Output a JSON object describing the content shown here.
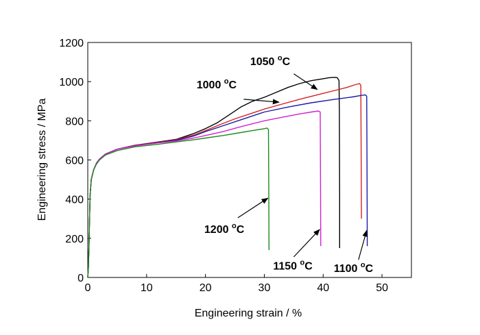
{
  "chart_data": {
    "type": "line",
    "xlabel": "Engineering strain / %",
    "ylabel": "Engineering stress / MPa",
    "xlim": [
      0,
      55
    ],
    "ylim": [
      0,
      1200
    ],
    "xticks": [
      "0",
      "10",
      "20",
      "30",
      "40",
      "50"
    ],
    "yticks": [
      "0",
      "200",
      "400",
      "600",
      "800",
      "1000",
      "1200"
    ],
    "grid": false,
    "legend": "none",
    "series": [
      {
        "label": "1000 °C",
        "color": "#000000",
        "points": [
          [
            0,
            0
          ],
          [
            0.1,
            50
          ],
          [
            0.2,
            150
          ],
          [
            0.3,
            300
          ],
          [
            0.4,
            420
          ],
          [
            0.6,
            500
          ],
          [
            1,
            550
          ],
          [
            1.5,
            585
          ],
          [
            2,
            605
          ],
          [
            3,
            630
          ],
          [
            5,
            655
          ],
          [
            8,
            675
          ],
          [
            12,
            692
          ],
          [
            15,
            705
          ],
          [
            18,
            735
          ],
          [
            20,
            760
          ],
          [
            22,
            790
          ],
          [
            24,
            830
          ],
          [
            26,
            870
          ],
          [
            28,
            900
          ],
          [
            30,
            920
          ],
          [
            32,
            945
          ],
          [
            34,
            970
          ],
          [
            36,
            990
          ],
          [
            38,
            1005
          ],
          [
            40,
            1015
          ],
          [
            41,
            1020
          ],
          [
            42,
            1022
          ],
          [
            42.4,
            1020
          ],
          [
            42.7,
            1005
          ],
          [
            42.75,
            850
          ],
          [
            42.8,
            400
          ],
          [
            42.8,
            150
          ]
        ]
      },
      {
        "label": "1050 °C",
        "color": "#d62020",
        "points": [
          [
            0,
            0
          ],
          [
            0.1,
            50
          ],
          [
            0.2,
            150
          ],
          [
            0.3,
            300
          ],
          [
            0.4,
            420
          ],
          [
            0.6,
            500
          ],
          [
            1,
            550
          ],
          [
            1.5,
            585
          ],
          [
            2,
            605
          ],
          [
            3,
            630
          ],
          [
            5,
            655
          ],
          [
            8,
            675
          ],
          [
            12,
            690
          ],
          [
            15,
            703
          ],
          [
            18,
            727
          ],
          [
            20,
            750
          ],
          [
            22,
            775
          ],
          [
            25,
            810
          ],
          [
            28,
            840
          ],
          [
            30,
            860
          ],
          [
            33,
            885
          ],
          [
            36,
            910
          ],
          [
            40,
            940
          ],
          [
            42,
            955
          ],
          [
            44,
            970
          ],
          [
            45.5,
            985
          ],
          [
            46.2,
            990
          ],
          [
            46.4,
            980
          ],
          [
            46.45,
            700
          ],
          [
            46.5,
            300
          ]
        ]
      },
      {
        "label": "1100 °C",
        "color": "#1a1aa8",
        "points": [
          [
            0,
            0
          ],
          [
            0.1,
            50
          ],
          [
            0.2,
            150
          ],
          [
            0.3,
            300
          ],
          [
            0.4,
            420
          ],
          [
            0.6,
            500
          ],
          [
            1,
            550
          ],
          [
            1.5,
            585
          ],
          [
            2,
            605
          ],
          [
            3,
            630
          ],
          [
            5,
            655
          ],
          [
            8,
            673
          ],
          [
            12,
            688
          ],
          [
            15,
            700
          ],
          [
            18,
            722
          ],
          [
            20,
            745
          ],
          [
            23,
            775
          ],
          [
            26,
            805
          ],
          [
            30,
            845
          ],
          [
            34,
            870
          ],
          [
            38,
            892
          ],
          [
            42,
            910
          ],
          [
            45,
            922
          ],
          [
            46.5,
            930
          ],
          [
            47.2,
            932
          ],
          [
            47.4,
            925
          ],
          [
            47.45,
            600
          ],
          [
            47.5,
            160
          ]
        ]
      },
      {
        "label": "1150 °C",
        "color": "#d020d0",
        "points": [
          [
            0,
            0
          ],
          [
            0.1,
            50
          ],
          [
            0.2,
            150
          ],
          [
            0.3,
            300
          ],
          [
            0.4,
            420
          ],
          [
            0.6,
            500
          ],
          [
            1,
            550
          ],
          [
            1.5,
            585
          ],
          [
            2,
            605
          ],
          [
            3,
            630
          ],
          [
            5,
            655
          ],
          [
            8,
            672
          ],
          [
            12,
            687
          ],
          [
            15,
            697
          ],
          [
            18,
            712
          ],
          [
            20,
            725
          ],
          [
            23,
            745
          ],
          [
            26,
            770
          ],
          [
            30,
            800
          ],
          [
            33,
            818
          ],
          [
            36,
            835
          ],
          [
            38,
            845
          ],
          [
            39.2,
            850
          ],
          [
            39.5,
            845
          ],
          [
            39.55,
            500
          ],
          [
            39.6,
            160
          ]
        ]
      },
      {
        "label": "1200 °C",
        "color": "#1a8a1a",
        "points": [
          [
            0,
            0
          ],
          [
            0.1,
            50
          ],
          [
            0.2,
            150
          ],
          [
            0.3,
            300
          ],
          [
            0.4,
            420
          ],
          [
            0.6,
            500
          ],
          [
            1,
            550
          ],
          [
            1.5,
            580
          ],
          [
            2,
            600
          ],
          [
            3,
            625
          ],
          [
            5,
            648
          ],
          [
            8,
            667
          ],
          [
            12,
            680
          ],
          [
            15,
            692
          ],
          [
            18,
            703
          ],
          [
            20,
            712
          ],
          [
            23,
            725
          ],
          [
            26,
            740
          ],
          [
            28,
            750
          ],
          [
            30,
            760
          ],
          [
            30.5,
            763
          ],
          [
            30.7,
            755
          ],
          [
            30.75,
            500
          ],
          [
            30.8,
            140
          ]
        ]
      }
    ],
    "annotations": [
      {
        "series": 0,
        "num": "1000",
        "sup": "o",
        "unit": "C",
        "text_pos": [
          18.5,
          965
        ],
        "arrow_from": [
          26.5,
          910
        ],
        "arrow_to": [
          32.5,
          895
        ]
      },
      {
        "series": 1,
        "num": "1050",
        "sup": "o",
        "unit": "C",
        "text_pos": [
          27.6,
          1085
        ],
        "arrow_from": [
          35,
          1040
        ],
        "arrow_to": [
          39,
          960
        ]
      },
      {
        "series": 2,
        "num": "1100",
        "sup": "o",
        "unit": "C",
        "text_pos": [
          41.8,
          28
        ],
        "arrow_from": [
          46,
          90
        ],
        "arrow_to": [
          47.4,
          240
        ]
      },
      {
        "series": 3,
        "num": "1150",
        "sup": "o",
        "unit": "C",
        "text_pos": [
          31.5,
          40
        ],
        "arrow_from": [
          35,
          105
        ],
        "arrow_to": [
          39.4,
          245
        ]
      },
      {
        "series": 4,
        "num": "1200",
        "sup": "o",
        "unit": "C",
        "text_pos": [
          19.8,
          228
        ],
        "arrow_from": [
          25.5,
          305
        ],
        "arrow_to": [
          30.6,
          405
        ]
      }
    ]
  }
}
